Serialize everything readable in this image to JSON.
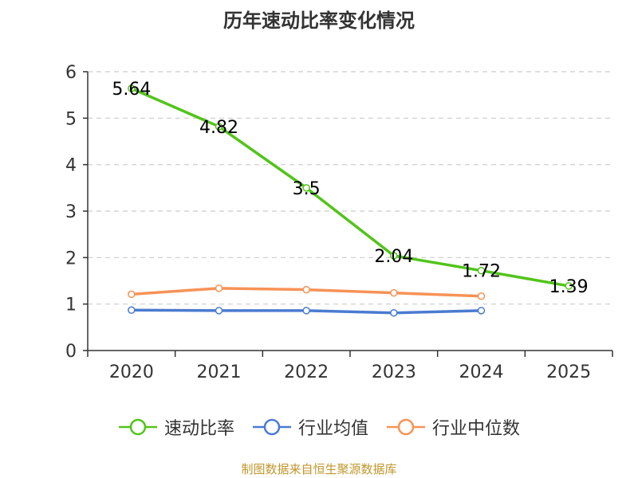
{
  "chart_data": {
    "type": "line",
    "title": "历年速动比率变化情况",
    "categories": [
      "2020",
      "2021",
      "2022",
      "2023",
      "2024",
      "2025"
    ],
    "ylim": [
      0,
      6
    ],
    "yticks": [
      0,
      1,
      2,
      3,
      4,
      5,
      6
    ],
    "grid": "horizontal dashed",
    "legend_position": "bottom-center",
    "series": [
      {
        "name": "速动比率",
        "color": "#52c41a",
        "values": [
          5.64,
          4.82,
          3.5,
          2.04,
          1.72,
          1.39
        ],
        "labels": [
          "5.64",
          "4.82",
          "3.5",
          "2.04",
          "1.72",
          "1.39"
        ],
        "show_labels": true
      },
      {
        "name": "行业均值",
        "color": "#4a7bd0",
        "values": [
          0.87,
          0.86,
          0.86,
          0.81,
          0.86,
          null
        ],
        "show_labels": false
      },
      {
        "name": "行业中位数",
        "color": "#f79256",
        "values": [
          1.21,
          1.34,
          1.31,
          1.24,
          1.17,
          null
        ],
        "show_labels": false
      }
    ]
  },
  "footer": {
    "source": "制图数据来自恒生聚源数据库"
  }
}
